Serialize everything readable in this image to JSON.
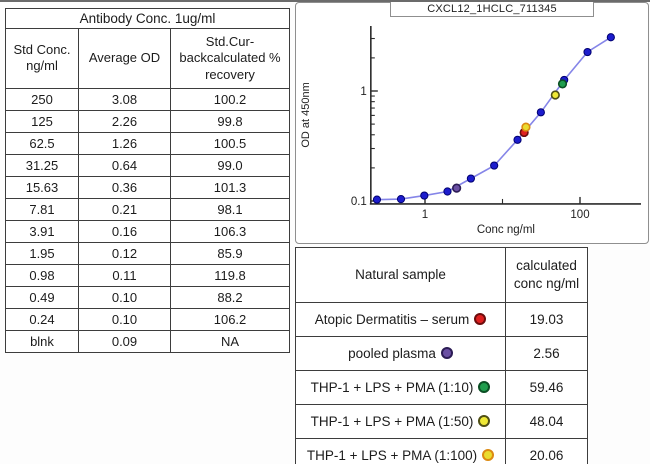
{
  "standard_table": {
    "title": "Antibody Conc. 1ug/ml",
    "columns": [
      "Std Conc.\nng/ml",
      "Average OD",
      "Std.Cur-\nbackcalculated %\nrecovery"
    ],
    "rows": [
      [
        "250",
        "3.08",
        "100.2"
      ],
      [
        "125",
        "2.26",
        "99.8"
      ],
      [
        "62.5",
        "1.26",
        "100.5"
      ],
      [
        "31.25",
        "0.64",
        "99.0"
      ],
      [
        "15.63",
        "0.36",
        "101.3"
      ],
      [
        "7.81",
        "0.21",
        "98.1"
      ],
      [
        "3.91",
        "0.16",
        "106.3"
      ],
      [
        "1.95",
        "0.12",
        "85.9"
      ],
      [
        "0.98",
        "0.11",
        "119.8"
      ],
      [
        "0.49",
        "0.10",
        "88.2"
      ],
      [
        "0.24",
        "0.10",
        "106.2"
      ],
      [
        "blnk",
        "0.09",
        "NA"
      ]
    ]
  },
  "chart_data": {
    "type": "scatter",
    "title": "CXCL12_1HCLC_711345",
    "xlabel": "Conc ng/ml",
    "ylabel": "OD at 450nm",
    "xscale": "log",
    "yscale": "log",
    "xlim": [
      0.2,
      600
    ],
    "ylim": [
      0.094,
      3.9
    ],
    "x_ticks": [
      1,
      100
    ],
    "x_minor_ticks": [
      10
    ],
    "y_ticks": [
      0.1,
      1
    ],
    "y_minor_ticks": [
      0.2,
      0.3,
      0.4,
      0.5,
      0.6,
      0.7,
      0.8,
      0.9,
      2,
      3
    ],
    "grid": false,
    "legend_position": "none",
    "standards": {
      "name": "standard curve",
      "point_color": "#1c1ccd",
      "point_edge": "#000070",
      "line_color": "#8585e8",
      "x": [
        0.24,
        0.49,
        0.98,
        1.95,
        3.91,
        7.81,
        15.63,
        31.25,
        62.5,
        125,
        250
      ],
      "y": [
        0.103,
        0.104,
        0.112,
        0.122,
        0.16,
        0.21,
        0.36,
        0.64,
        1.26,
        2.26,
        3.08
      ]
    },
    "samples": [
      {
        "name": "Atopic Dermatitis – serum",
        "x": 19.03,
        "y": 0.42,
        "fill": "#de1f1f",
        "edge": "#6d0d0d"
      },
      {
        "name": "pooled plasma",
        "x": 2.56,
        "y": 0.131,
        "fill": "#6a4fa3",
        "edge": "#2c1c55"
      },
      {
        "name": "THP-1 + LPS + PMA (1:10)",
        "x": 59.46,
        "y": 1.16,
        "fill": "#1f9e4d",
        "edge": "#0b4f24"
      },
      {
        "name": "THP-1 + LPS + PMA (1:50)",
        "x": 48.04,
        "y": 0.92,
        "fill": "#efe937",
        "edge": "#4f4f15"
      },
      {
        "name": "THP-1 + LPS + PMA (1:100)",
        "x": 20.06,
        "y": 0.47,
        "fill": "#eadc2f",
        "edge": "#dc8a12"
      }
    ]
  },
  "sample_table": {
    "columns": [
      "Natural sample",
      "calculated\nconc ng/ml"
    ],
    "rows": [
      {
        "label": "Atopic Dermatitis – serum",
        "value": "19.03",
        "dot_style": "background:#de1f1f;border-color:#6d0d0d"
      },
      {
        "label": "pooled plasma",
        "value": "2.56",
        "dot_style": "background:#6a4fa3;border-color:#2c1c55"
      },
      {
        "label": "THP-1 + LPS + PMA (1:10)",
        "value": "59.46",
        "dot_style": "background:#1f9e4d;border-color:#0b4f24"
      },
      {
        "label": "THP-1 + LPS + PMA (1:50)",
        "value": "48.04",
        "dot_style": "background:#efe937;border-color:#4f4f15"
      },
      {
        "label": "THP-1 + LPS + PMA (1:100)",
        "value": "20.06",
        "dot_style": "background:#eadc2f;border-color:#dc8a12"
      }
    ]
  }
}
